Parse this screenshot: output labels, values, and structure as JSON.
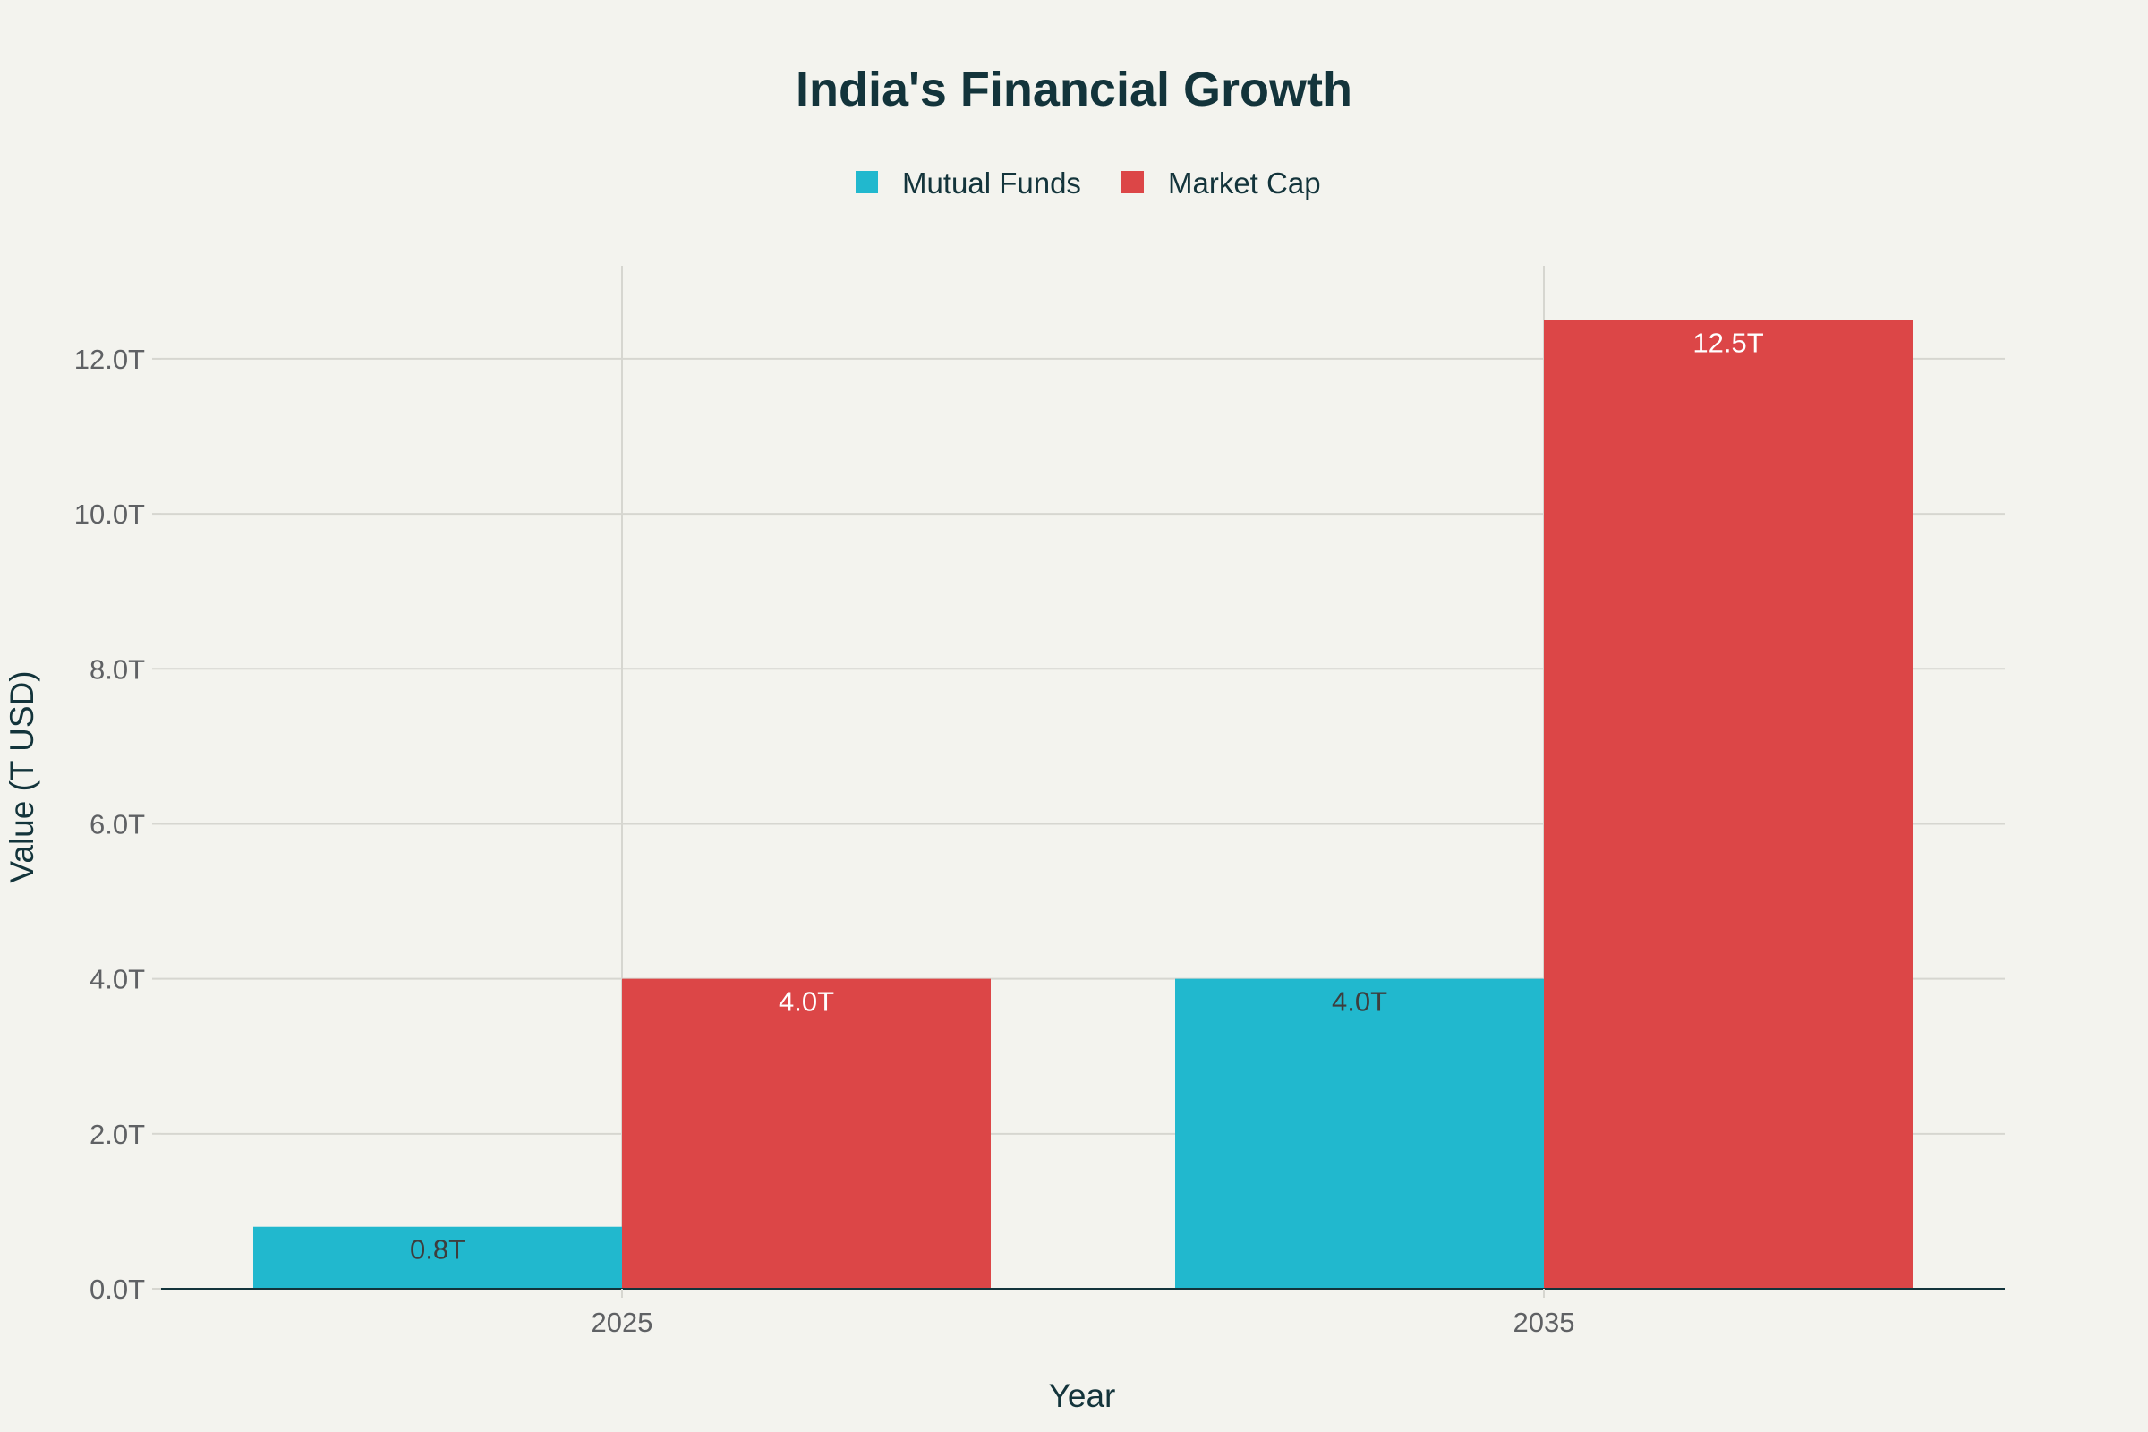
{
  "chart_data": {
    "type": "bar",
    "title": "India's Financial Growth",
    "xlabel": "Year",
    "ylabel": "Value (T USD)",
    "categories": [
      "2025",
      "2035"
    ],
    "series": [
      {
        "name": "Mutual Funds",
        "values": [
          0.8,
          4.0
        ],
        "labels": [
          "0.8T",
          "4.0T"
        ],
        "color": "#21b8ce",
        "label_color": "#3d3d3d"
      },
      {
        "name": "Market Cap",
        "values": [
          4.0,
          12.5
        ],
        "labels": [
          "4.0T",
          "12.5T"
        ],
        "color": "#dc4647",
        "label_color": "#ffffff"
      }
    ],
    "ylim": [
      0,
      13.2
    ],
    "yticks": [
      0,
      2,
      4,
      6,
      8,
      10,
      12
    ],
    "ytick_labels": [
      "0.0T",
      "2.0T",
      "4.0T",
      "6.0T",
      "8.0T",
      "10.0T",
      "12.0T"
    ],
    "grid": true,
    "legend_position": "top-center",
    "colors": {
      "background": "#f3f3ee",
      "grid": "#d6d6d0",
      "axis": "#13343b",
      "text": "#13343b",
      "tick_text": "#5f6164"
    }
  }
}
